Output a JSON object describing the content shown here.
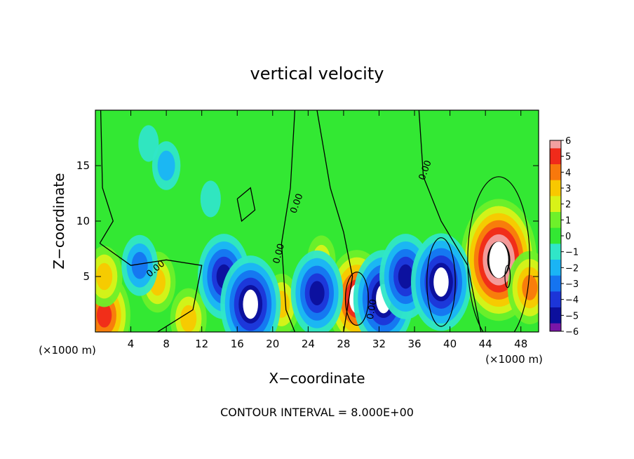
{
  "chart_data": {
    "type": "heatmap",
    "title": "vertical velocity",
    "xlabel": "X−coordinate",
    "ylabel": "Z−coordinate",
    "x_unit_left": "(×1000 m)",
    "x_unit_right": "(×1000 m)",
    "xlim": [
      0,
      50
    ],
    "ylim": [
      0,
      20
    ],
    "x_ticks": [
      4,
      8,
      12,
      16,
      20,
      24,
      28,
      32,
      36,
      40,
      44,
      48
    ],
    "y_ticks": [
      5,
      10,
      15
    ],
    "colorbar": {
      "range": [
        -6,
        6
      ],
      "ticks": [
        6,
        5,
        4,
        3,
        2,
        1,
        0,
        -1,
        -2,
        -3,
        -4,
        -5,
        -6
      ],
      "tick_labels": [
        "6",
        "5",
        "4",
        "3",
        "2",
        "1",
        "0",
        "−1",
        "−2",
        "−3",
        "−4",
        "−5",
        "−6"
      ]
    },
    "contour_labels": [
      "0.00",
      "0.00",
      "0.00",
      "0.00",
      "0.00"
    ],
    "footnote": "CONTOUR INTERVAL = 8.000E+00",
    "features": [
      {
        "x": 1,
        "z": 1.5,
        "w": 5
      },
      {
        "x": 1,
        "z": 5,
        "w": 3
      },
      {
        "x": 7,
        "z": 4.5,
        "w": 3
      },
      {
        "x": 10.5,
        "z": 1.2,
        "w": 3
      },
      {
        "x": 21,
        "z": 2.5,
        "w": 3
      },
      {
        "x": 25.5,
        "z": 6.5,
        "w": 2
      },
      {
        "x": 29.5,
        "z": 3,
        "w": 6
      },
      {
        "x": 45.5,
        "z": 6.5,
        "w": 8
      },
      {
        "x": 49,
        "z": 4,
        "w": 4
      },
      {
        "x": 5,
        "z": 6,
        "w": -3
      },
      {
        "x": 14.5,
        "z": 5,
        "w": -5
      },
      {
        "x": 17.5,
        "z": 2.5,
        "w": -6
      },
      {
        "x": 25,
        "z": 3.5,
        "w": -5
      },
      {
        "x": 32.5,
        "z": 3,
        "w": -6
      },
      {
        "x": 35,
        "z": 5,
        "w": -5
      },
      {
        "x": 39,
        "z": 4.5,
        "w": -6
      },
      {
        "x": 8,
        "z": 15,
        "w": -2
      },
      {
        "x": 13,
        "z": 12,
        "w": -1
      },
      {
        "x": 6,
        "z": 17,
        "w": -1
      }
    ]
  }
}
